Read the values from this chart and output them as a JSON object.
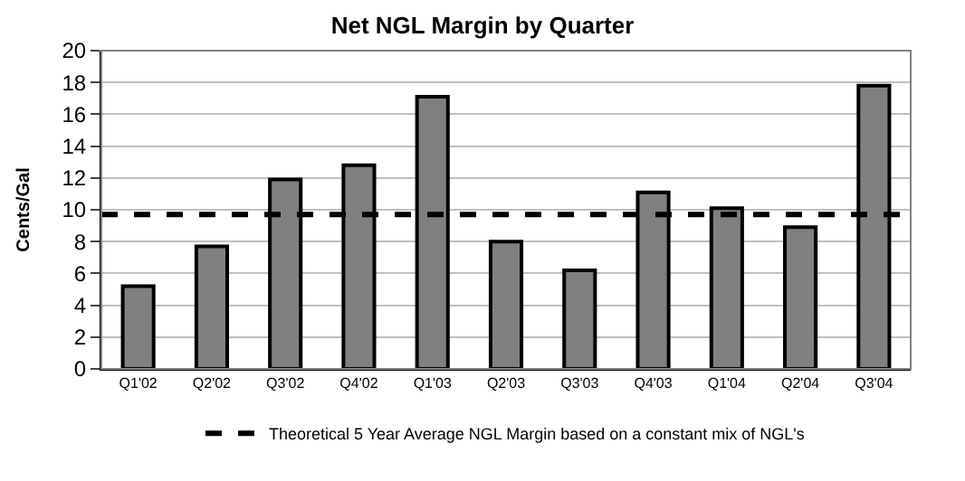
{
  "chart_data": {
    "type": "bar",
    "title": "Net NGL Margin by Quarter",
    "ylabel": "Cents/Gal",
    "categories": [
      "Q1'02",
      "Q2'02",
      "Q3'02",
      "Q4'02",
      "Q1'03",
      "Q2'03",
      "Q3'03",
      "Q4'03",
      "Q1'04",
      "Q2'04",
      "Q3'04"
    ],
    "values": [
      5.2,
      7.7,
      11.9,
      12.8,
      17.1,
      8.0,
      6.2,
      11.1,
      10.1,
      8.9,
      17.8
    ],
    "color": "#808080",
    "ylim": [
      0,
      20
    ],
    "yticks": [
      0,
      2,
      4,
      6,
      8,
      10,
      12,
      14,
      16,
      18,
      20
    ],
    "grid": "y",
    "ref_lines": [
      {
        "axis": "y",
        "value": 9.7,
        "label": "Theoretical 5 Year Average NGL Margin based on a constant mix of NGL's",
        "color": "#000000",
        "line_style": "dashed"
      }
    ],
    "legend": "bottom"
  }
}
